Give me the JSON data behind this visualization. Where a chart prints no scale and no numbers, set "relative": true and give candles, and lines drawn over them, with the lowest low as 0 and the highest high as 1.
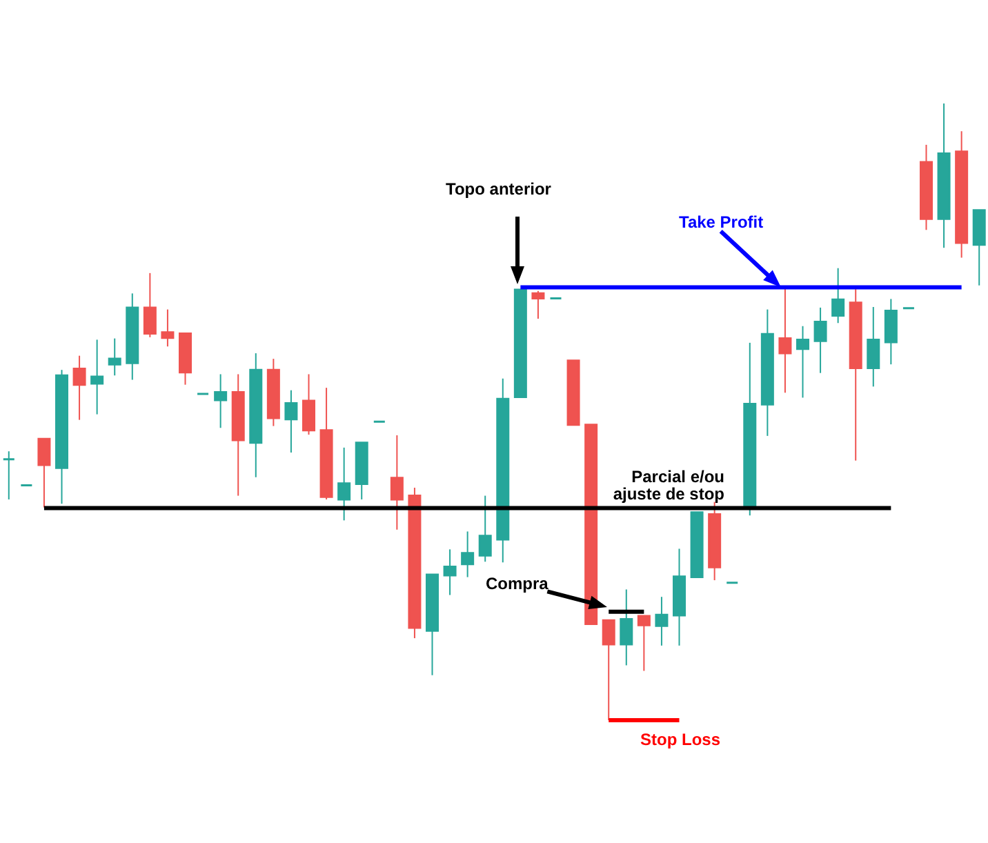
{
  "chart_data": {
    "type": "candlestick",
    "relative": true,
    "categories": [
      null,
      null,
      null,
      null,
      null,
      null,
      null,
      null,
      null,
      null,
      null,
      null,
      null,
      null,
      null,
      null,
      null,
      null,
      null,
      null,
      null,
      null,
      null,
      null,
      null,
      null,
      null,
      null,
      null,
      null,
      null,
      null,
      null,
      null,
      null,
      null,
      null,
      null,
      null,
      null,
      null,
      null,
      null,
      null,
      null,
      null,
      null,
      null,
      null,
      null,
      null,
      null,
      null,
      null,
      null,
      null
    ],
    "ohlc": [
      [
        0.423,
        0.436,
        0.358,
        0.423
      ],
      [
        0.381,
        0.381,
        0.381,
        0.381
      ],
      [
        0.456,
        0.456,
        0.345,
        0.414
      ],
      [
        0.409,
        0.568,
        0.351,
        0.559
      ],
      [
        0.57,
        0.591,
        0.487,
        0.544
      ],
      [
        0.546,
        0.617,
        0.496,
        0.557
      ],
      [
        0.577,
        0.619,
        0.559,
        0.586
      ],
      [
        0.579,
        0.692,
        0.552,
        0.669
      ],
      [
        0.669,
        0.725,
        0.621,
        0.627
      ],
      [
        0.629,
        0.666,
        0.606,
        0.62
      ],
      [
        0.627,
        0.627,
        0.544,
        0.564
      ],
      [
        0.529,
        0.529,
        0.529,
        0.529
      ],
      [
        0.519,
        0.561,
        0.474,
        0.532
      ],
      [
        0.532,
        0.561,
        0.364,
        0.454
      ],
      [
        0.45,
        0.595,
        0.394,
        0.568
      ],
      [
        0.568,
        0.586,
        0.477,
        0.49
      ],
      [
        0.488,
        0.535,
        0.434,
        0.514
      ],
      [
        0.518,
        0.561,
        0.463,
        0.47
      ],
      [
        0.47,
        0.539,
        0.358,
        0.362
      ],
      [
        0.358,
        0.442,
        0.324,
        0.384
      ],
      [
        0.383,
        0.45,
        0.358,
        0.45
      ],
      [
        0.484,
        0.484,
        0.484,
        0.484
      ],
      [
        0.393,
        0.462,
        0.309,
        0.358
      ],
      [
        0.364,
        0.377,
        0.133,
        0.15
      ],
      [
        0.145,
        0.236,
        0.073,
        0.236
      ],
      [
        0.235,
        0.277,
        0.203,
        0.249
      ],
      [
        0.253,
        0.306,
        0.232,
        0.271
      ],
      [
        0.267,
        0.364,
        0.257,
        0.299
      ],
      [
        0.293,
        0.554,
        0.256,
        0.521
      ],
      [
        0.524,
        0.698,
        0.524,
        0.698
      ],
      [
        0.692,
        0.696,
        0.651,
        0.684
      ],
      [
        0.684,
        0.684,
        0.684,
        0.684
      ],
      [
        0.583,
        0.583,
        0.479,
        0.479
      ],
      [
        0.479,
        0.479,
        0.156,
        0.156
      ],
      [
        0.162,
        0.162,
        0.0,
        0.123
      ],
      [
        0.123,
        0.212,
        0.089,
        0.164
      ],
      [
        0.169,
        0.169,
        0.08,
        0.154
      ],
      [
        0.153,
        0.2,
        0.121,
        0.171
      ],
      [
        0.17,
        0.278,
        0.121,
        0.233
      ],
      [
        0.232,
        0.337,
        0.232,
        0.337
      ],
      [
        0.334,
        0.354,
        0.227,
        0.248
      ],
      [
        0.223,
        0.223,
        0.223,
        0.223
      ],
      [
        0.347,
        0.612,
        0.332,
        0.513
      ],
      [
        0.512,
        0.666,
        0.461,
        0.626
      ],
      [
        0.619,
        0.701,
        0.531,
        0.595
      ],
      [
        0.602,
        0.639,
        0.523,
        0.617
      ],
      [
        0.615,
        0.669,
        0.563,
        0.646
      ],
      [
        0.656,
        0.733,
        0.644,
        0.682
      ],
      [
        0.677,
        0.699,
        0.421,
        0.571
      ],
      [
        0.571,
        0.67,
        0.541,
        0.617
      ],
      [
        0.613,
        0.683,
        0.577,
        0.664
      ],
      [
        0.668,
        0.668,
        0.668,
        0.668
      ],
      [
        0.905,
        0.933,
        0.795,
        0.813
      ],
      [
        0.813,
        1.0,
        0.766,
        0.919
      ],
      [
        0.922,
        0.955,
        0.75,
        0.774
      ],
      [
        0.771,
        0.827,
        0.705,
        0.827
      ]
    ],
    "colors": [
      "#26a69a",
      "#26a69a",
      "#ef5350",
      "#26a69a",
      "#ef5350",
      "#26a69a",
      "#26a69a",
      "#26a69a",
      "#ef5350",
      "#ef5350",
      "#ef5350",
      "#26a69a",
      "#26a69a",
      "#ef5350",
      "#26a69a",
      "#ef5350",
      "#26a69a",
      "#ef5350",
      "#ef5350",
      "#26a69a",
      "#26a69a",
      "#26a69a",
      "#ef5350",
      "#ef5350",
      "#26a69a",
      "#26a69a",
      "#26a69a",
      "#26a69a",
      "#26a69a",
      "#26a69a",
      "#ef5350",
      "#26a69a",
      "#ef5350",
      "#ef5350",
      "#ef5350",
      "#26a69a",
      "#ef5350",
      "#26a69a",
      "#26a69a",
      "#26a69a",
      "#ef5350",
      "#26a69a",
      "#26a69a",
      "#26a69a",
      "#ef5350",
      "#26a69a",
      "#26a69a",
      "#26a69a",
      "#ef5350",
      "#26a69a",
      "#26a69a",
      "#26a69a",
      "#ef5350",
      "#26a69a",
      "#ef5350",
      "#26a69a"
    ],
    "series": [
      {
        "type": "line",
        "name": "Take Profit",
        "color": "#0000ff",
        "values": [
          null,
          null,
          null,
          null,
          null,
          null,
          null,
          null,
          null,
          null,
          null,
          null,
          null,
          null,
          null,
          null,
          null,
          null,
          null,
          null,
          null,
          null,
          null,
          null,
          null,
          null,
          null,
          null,
          null,
          0.702,
          0.702,
          0.702,
          0.702,
          0.702,
          0.702,
          0.702,
          0.702,
          0.702,
          0.702,
          0.702,
          0.702,
          0.702,
          0.702,
          0.702,
          0.702,
          0.702,
          0.702,
          0.702,
          0.702,
          0.702,
          0.702,
          0.702,
          0.702,
          0.702,
          0.702,
          null
        ]
      },
      {
        "type": "line",
        "name": "Parcial e/ou ajuste de stop",
        "color": "#000000",
        "values": [
          null,
          null,
          0.344,
          0.344,
          0.344,
          0.344,
          0.344,
          0.344,
          0.344,
          0.344,
          0.344,
          0.344,
          0.344,
          0.344,
          0.344,
          0.344,
          0.344,
          0.344,
          0.344,
          0.344,
          0.344,
          0.344,
          0.344,
          0.344,
          0.344,
          0.344,
          0.344,
          0.344,
          0.344,
          0.344,
          0.344,
          0.344,
          0.344,
          0.344,
          0.344,
          0.344,
          0.344,
          0.344,
          0.344,
          0.344,
          0.344,
          0.344,
          0.344,
          0.344,
          0.344,
          0.344,
          0.344,
          0.344,
          0.344,
          0.344,
          0.344,
          null,
          null,
          null,
          null,
          null
        ]
      },
      {
        "type": "line",
        "color": "#000000",
        "values": [
          null,
          null,
          null,
          null,
          null,
          null,
          null,
          null,
          null,
          null,
          null,
          null,
          null,
          null,
          null,
          null,
          null,
          null,
          null,
          null,
          null,
          null,
          null,
          null,
          null,
          null,
          null,
          null,
          null,
          null,
          null,
          null,
          null,
          null,
          0.176,
          0.176,
          0.176,
          null,
          null,
          null,
          null,
          null,
          null,
          null,
          null,
          null,
          null,
          null,
          null,
          null,
          null,
          null,
          null,
          null,
          null,
          null
        ]
      },
      {
        "type": "line",
        "name": "Stop Loss",
        "color": "#ff0000",
        "values": [
          null,
          null,
          null,
          null,
          null,
          null,
          null,
          null,
          null,
          null,
          null,
          null,
          null,
          null,
          null,
          null,
          null,
          null,
          null,
          null,
          null,
          null,
          null,
          null,
          null,
          null,
          null,
          null,
          null,
          null,
          null,
          null,
          null,
          null,
          0.0,
          0.0,
          0.0,
          0.0,
          0.0,
          null,
          null,
          null,
          null,
          null,
          null,
          null,
          null,
          null,
          null,
          null,
          null,
          null,
          null,
          null,
          null,
          null
        ]
      }
    ],
    "annotations": [
      "Topo anterior",
      "Compra"
    ]
  }
}
